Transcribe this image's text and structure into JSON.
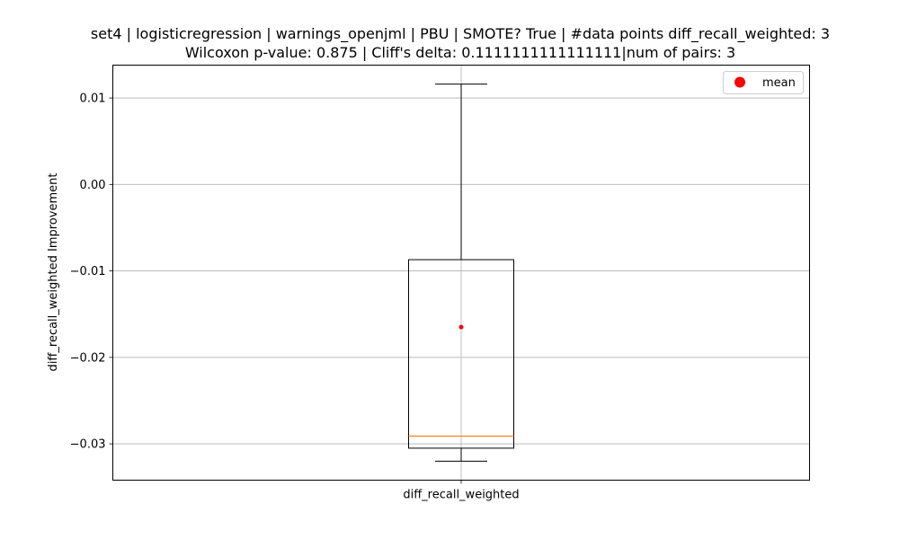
{
  "chart_data": {
    "type": "box",
    "title_line1": "set4 | logisticregression | warnings_openjml | PBU | SMOTE? True | #data points diff_recall_weighted: 3",
    "title_line2": "Wilcoxon p-value: 0.875 | Cliff's delta: 0.1111111111111111|num of pairs: 3",
    "xlabel": "",
    "ylabel": "diff_recall_weighted Improvement",
    "categories": [
      "diff_recall_weighted"
    ],
    "ylim": [
      -0.0342,
      0.0138
    ],
    "yticks": [
      0.01,
      0.0,
      -0.01,
      -0.02,
      -0.03
    ],
    "ytick_labels": [
      "0.01",
      "0.00",
      "−0.01",
      "−0.02",
      "−0.03"
    ],
    "grid": true,
    "box": {
      "whisker_low": -0.032,
      "q1": -0.0305,
      "median": -0.0291,
      "q3": -0.0087,
      "whisker_high": 0.0116,
      "mean": -0.0165
    },
    "legend": {
      "position": "top-right",
      "label": "mean"
    },
    "colors": {
      "mean": "#ff0000",
      "median": "#ff7f0e",
      "grid": "#b0b0b0",
      "box": "#000000"
    }
  }
}
